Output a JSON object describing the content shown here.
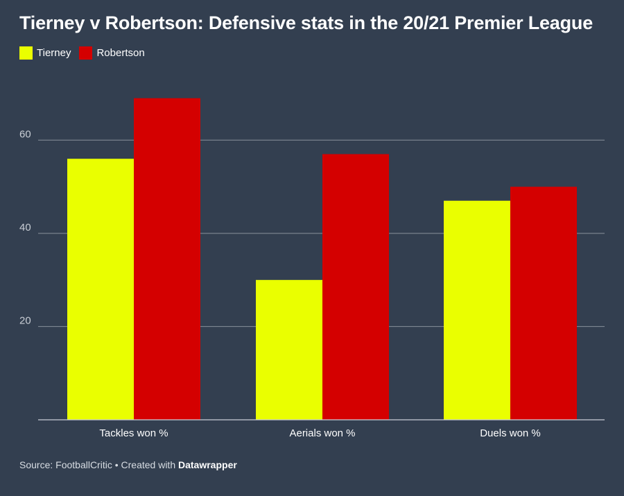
{
  "chart_data": {
    "type": "bar",
    "title": "Tierney v Robertson: Defensive stats in the 20/21 Premier League",
    "categories": [
      "Tackles won %",
      "Aerials won %",
      "Duels won %"
    ],
    "series": [
      {
        "name": "Tierney",
        "color": "#eaff00",
        "values": [
          56,
          30,
          47
        ]
      },
      {
        "name": "Robertson",
        "color": "#d40000",
        "values": [
          69,
          57,
          50
        ]
      }
    ],
    "yticks": [
      20,
      40,
      60
    ],
    "ylim": [
      0,
      70
    ],
    "xlabel": "",
    "ylabel": ""
  },
  "footer": {
    "source": "Source: FootballCritic • Created with ",
    "brand": "Datawrapper"
  },
  "colors": {
    "background": "#333f50",
    "gridline": "#8a929c",
    "text": "#ffffff"
  }
}
